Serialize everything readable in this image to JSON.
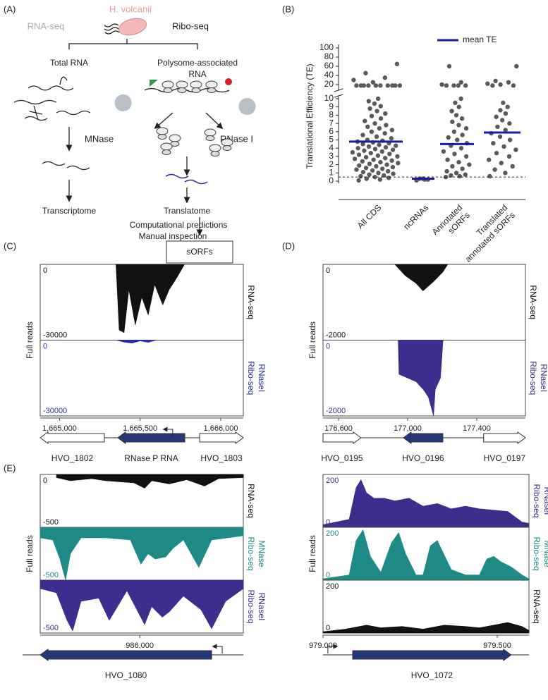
{
  "panel_a": {
    "label": "(A)",
    "organism": "H. volcanii",
    "left_method": "RNA-seq",
    "right_method": "Ribo-seq",
    "left_input": "Total RNA",
    "right_input": [
      "Polysome-associated",
      "RNA"
    ],
    "nuclease_1": "MNase",
    "nuclease_2": "RNase I",
    "left_output": "Transcriptome",
    "right_output": "Translatome",
    "steps": [
      "Computational predictions",
      "Manual inspection"
    ],
    "result": "sORFs"
  },
  "chart_data": {
    "type": "strip",
    "label": "(B)",
    "ylabel": "Translational Efficiency (TE)",
    "categories": [
      [
        "All CDS"
      ],
      [
        "ncRNAs"
      ],
      [
        "Annotated",
        "sORFs"
      ],
      [
        "Translated",
        "annotated sORFs"
      ]
    ],
    "series": [
      {
        "name": "mean TE",
        "color": "#1a1aa8",
        "values": [
          4.8,
          0.3,
          4.5,
          5.9
        ]
      }
    ],
    "legend": "top-right",
    "point_color": "#5a5a5a",
    "points": [
      [
        0.1,
        0.2,
        0.3,
        0.4,
        0.5,
        0.6,
        0.7,
        0.8,
        0.9,
        1.0,
        1.1,
        1.2,
        1.3,
        1.4,
        1.5,
        1.6,
        1.7,
        1.8,
        1.9,
        2.0,
        2.1,
        2.2,
        2.3,
        2.4,
        2.5,
        2.6,
        2.7,
        2.8,
        2.9,
        3.0,
        3.1,
        3.2,
        3.3,
        3.4,
        3.5,
        3.6,
        3.7,
        3.8,
        3.9,
        4.0,
        4.1,
        4.2,
        4.3,
        4.4,
        4.5,
        4.6,
        4.7,
        4.8,
        4.9,
        5.0,
        5.2,
        5.4,
        5.6,
        5.8,
        6.0,
        6.2,
        6.4,
        6.6,
        6.8,
        7.0,
        7.3,
        7.6,
        7.9,
        8.2,
        8.5,
        8.8,
        9.1,
        9.4,
        9.7,
        10.0,
        18,
        18,
        18,
        18,
        18,
        18,
        18,
        18,
        18,
        18,
        25,
        30,
        35,
        45,
        65
      ],
      [
        0.1,
        0.2,
        0.3,
        0.2,
        0.3
      ],
      [
        0.5,
        0.6,
        0.7,
        0.8,
        1,
        1.2,
        1.5,
        1.8,
        2,
        2.3,
        2.6,
        3,
        3.3,
        3.6,
        4,
        4.3,
        4.6,
        5,
        5.3,
        5.6,
        6,
        6.4,
        6.8,
        7.2,
        7.6,
        8,
        8.5,
        9,
        9.5,
        10,
        18,
        18,
        18,
        18,
        20,
        25,
        60
      ],
      [
        0.6,
        1,
        1.4,
        1.8,
        2.2,
        2.6,
        3,
        3.4,
        3.8,
        4.2,
        4.6,
        5,
        5.4,
        5.8,
        6.2,
        6.6,
        7,
        7.4,
        7.8,
        8.2,
        8.6,
        9,
        9.5,
        18,
        18,
        20,
        22,
        25,
        28,
        60
      ]
    ],
    "ylim": [
      0,
      10
    ],
    "yticks": [
      0,
      1,
      2,
      3,
      4,
      5,
      6,
      7,
      8,
      9,
      10
    ],
    "ylim_upper": [
      20,
      100
    ],
    "yticks_upper": [
      20,
      40,
      60,
      80,
      100
    ],
    "reference_line": 0.5
  },
  "genome_panels": [
    {
      "label": "(C)",
      "ylabel": "Full reads",
      "xlim": [
        1664880,
        1666140
      ],
      "xticks": [
        {
          "value": 1665000,
          "label": "1,665,000"
        },
        {
          "value": 1665500,
          "label": "1,665,500"
        },
        {
          "value": 1666000,
          "label": "1,666,000"
        }
      ],
      "tracks": [
        {
          "name": [
            "RNA-seq"
          ],
          "color": "#111111",
          "ylim": [
            -30000,
            0
          ],
          "yticks": [
            0,
            -30000
          ],
          "x": [
            1665350,
            1665370,
            1665400,
            1665430,
            1665470,
            1665510,
            1665550,
            1665590,
            1665640,
            1665680,
            1665730,
            1665775
          ],
          "values": [
            0,
            -26000,
            -27000,
            -10000,
            -24000,
            -13000,
            -20000,
            -8000,
            -16000,
            -10000,
            -5000,
            0
          ]
        },
        {
          "name": [
            "Ribo-seq",
            "RNaseI"
          ],
          "color": "#2a2aa8",
          "ylim": [
            -30000,
            0
          ],
          "yticks": [
            0,
            -30000
          ],
          "x": [
            1665350,
            1665400,
            1665450,
            1665500,
            1665550,
            1665600
          ],
          "values": [
            0,
            -800,
            -1200,
            -300,
            -900,
            0
          ]
        }
      ],
      "genes": [
        {
          "name": "HVO_1802",
          "start": 1664880,
          "end": 1665278,
          "strand": "-",
          "color": "#ffffff"
        },
        {
          "name": "RNase P RNA",
          "start": 1665361,
          "end": 1665777,
          "strand": "-",
          "color": "#233876",
          "tss": 1665702
        },
        {
          "name": "HVO_1803",
          "start": 1665869,
          "end": 1666140,
          "strand": "+",
          "color": "#ffffff"
        }
      ]
    },
    {
      "label": "(D)",
      "ylabel": "Full reads",
      "xlim": [
        176510,
        177682
      ],
      "xticks": [
        {
          "value": 176600,
          "label": "176,600"
        },
        {
          "value": 177000,
          "label": "177,000"
        },
        {
          "value": 177400,
          "label": "177,400"
        }
      ],
      "tracks": [
        {
          "name": [
            "RNA-seq"
          ],
          "color": "#111111",
          "ylim": [
            -2000,
            0
          ],
          "yticks": [
            0,
            -2000
          ],
          "x": [
            176926,
            176987,
            177049,
            177089,
            177151,
            177204,
            177232
          ],
          "values": [
            0,
            -300,
            -500,
            -700,
            -450,
            -200,
            0
          ]
        },
        {
          "name": [
            "Ribo-seq",
            "RNaseI"
          ],
          "color": "#3d2d8c",
          "ylim": [
            -2000,
            0
          ],
          "yticks": [
            0,
            -2000
          ],
          "x": [
            176945,
            176950,
            177000,
            177050,
            177090,
            177120,
            177150,
            177160,
            177190,
            177205
          ],
          "values": [
            0,
            -900,
            -1000,
            -1100,
            -1300,
            -1500,
            -2000,
            -1300,
            -1000,
            0
          ]
        }
      ],
      "genes": [
        {
          "name": "HVO_0195",
          "start": 176510,
          "end": 176730,
          "strand": "+",
          "color": "#ffffff"
        },
        {
          "name": "HVO_0196",
          "start": 176975,
          "end": 177204,
          "strand": "-",
          "color": "#233876"
        },
        {
          "name": "HVO_0197",
          "start": 177440,
          "end": 177682,
          "strand": "+",
          "color": "#ffffff"
        }
      ]
    },
    {
      "label": "(E)",
      "ylabel": "Full reads",
      "xlim": [
        985510,
        986510
      ],
      "xticks": [
        {
          "value": 986000,
          "label": "986,000"
        }
      ],
      "tracks": [
        {
          "name": [
            "RNA-seq"
          ],
          "color": "#111111",
          "ylim": [
            -500,
            0
          ],
          "yticks": [
            0,
            -500
          ],
          "x": [
            985590,
            985659,
            985763,
            985833,
            985972,
            986024,
            986059,
            986145,
            986232,
            986319,
            986388,
            986510
          ],
          "values": [
            -30,
            -60,
            -40,
            -60,
            -80,
            -130,
            -60,
            -90,
            -50,
            -110,
            -40,
            -30
          ]
        },
        {
          "name": [
            "Ribo-seq",
            "MNase"
          ],
          "color": "#1f8a85",
          "ylim": [
            -500,
            0
          ],
          "yticks": [
            0,
            -500
          ],
          "x": [
            985510,
            985572,
            985607,
            985635,
            985659,
            985711,
            985833,
            985954,
            986006,
            986041,
            986076,
            986128,
            986163,
            986215,
            986291,
            986354,
            986510
          ],
          "values": [
            -100,
            -120,
            -300,
            -500,
            -250,
            -100,
            -100,
            -120,
            -350,
            -250,
            -300,
            -280,
            -200,
            -120,
            -380,
            -120,
            -80
          ]
        },
        {
          "name": [
            "Ribo-seq",
            "RNaseI"
          ],
          "color": "#3d2d8c",
          "ylim": [
            -500,
            0
          ],
          "yticks": [
            0,
            -500
          ],
          "x": [
            985510,
            985590,
            985642,
            985670,
            985711,
            985798,
            985850,
            985937,
            986024,
            986059,
            986111,
            986145,
            986215,
            986302,
            986354,
            986423,
            986510
          ],
          "values": [
            -80,
            -120,
            -380,
            -480,
            -200,
            -170,
            -380,
            -100,
            -420,
            -250,
            -350,
            -300,
            -150,
            -280,
            -460,
            -200,
            -80
          ]
        }
      ],
      "genes": [
        {
          "name": "HVO_1080",
          "start": 985510,
          "end": 986354,
          "strand": "-",
          "color": "#233876",
          "tss": 986406
        }
      ]
    },
    {
      "ylabel": "Full reads",
      "xlim": [
        979000,
        979591
      ],
      "xticks": [
        {
          "value": 979000,
          "label": "979.000"
        },
        {
          "value": 979500,
          "label": "979.500"
        }
      ],
      "tracks": [
        {
          "name": [
            "Ribo-seq",
            "RNaseI"
          ],
          "color": "#3d2d8c",
          "ylim": [
            0,
            200
          ],
          "yticks": [
            200,
            0
          ],
          "x": [
            979000,
            979075,
            979095,
            979109,
            979125,
            979146,
            979176,
            979206,
            979247,
            979287,
            979328,
            979368,
            979409,
            979449,
            979490,
            979530,
            979571,
            979591
          ],
          "values": [
            10,
            30,
            150,
            180,
            130,
            110,
            110,
            100,
            110,
            80,
            90,
            70,
            80,
            70,
            65,
            60,
            20,
            15
          ]
        },
        {
          "name": [
            "Ribo-seq",
            "MNase"
          ],
          "color": "#1f8a85",
          "ylim": [
            0,
            200
          ],
          "yticks": [
            200,
            0
          ],
          "x": [
            979000,
            979075,
            979095,
            979115,
            979136,
            979166,
            979196,
            979217,
            979237,
            979267,
            979287,
            979308,
            979328,
            979368,
            979409,
            979449,
            979470,
            979490,
            979510,
            979540,
            979571,
            979591
          ],
          "values": [
            5,
            20,
            150,
            190,
            90,
            30,
            140,
            180,
            100,
            20,
            20,
            130,
            150,
            40,
            20,
            20,
            80,
            90,
            70,
            50,
            20,
            5
          ]
        },
        {
          "name": [
            "RNA-seq"
          ],
          "color": "#111111",
          "ylim": [
            0,
            200
          ],
          "yticks": [
            200,
            0
          ],
          "x": [
            979000,
            979065,
            979125,
            979166,
            979227,
            979287,
            979348,
            979409,
            979449,
            979490,
            979530,
            979571,
            979591
          ],
          "values": [
            5,
            15,
            30,
            20,
            25,
            15,
            30,
            25,
            20,
            30,
            40,
            25,
            10
          ]
        }
      ],
      "genes": [
        {
          "name": "HVO_1072",
          "start": 979085,
          "end": 979540,
          "strand": "+",
          "color": "#233876",
          "tss": 979014
        }
      ]
    }
  ]
}
